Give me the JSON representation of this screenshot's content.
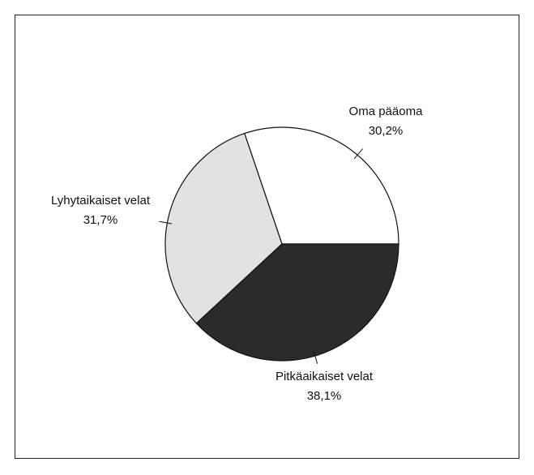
{
  "chart_data": {
    "type": "pie",
    "categories": [
      "Oma pääoma",
      "Lyhytaikaiset velat",
      "Pitkäaikaiset velat"
    ],
    "values": [
      30.2,
      31.7,
      38.1
    ],
    "value_labels": [
      "30,2%",
      "31,7%",
      "38,1%"
    ],
    "colors": [
      "#ffffff",
      "#e2e2e2",
      "#2b2b2b"
    ]
  }
}
